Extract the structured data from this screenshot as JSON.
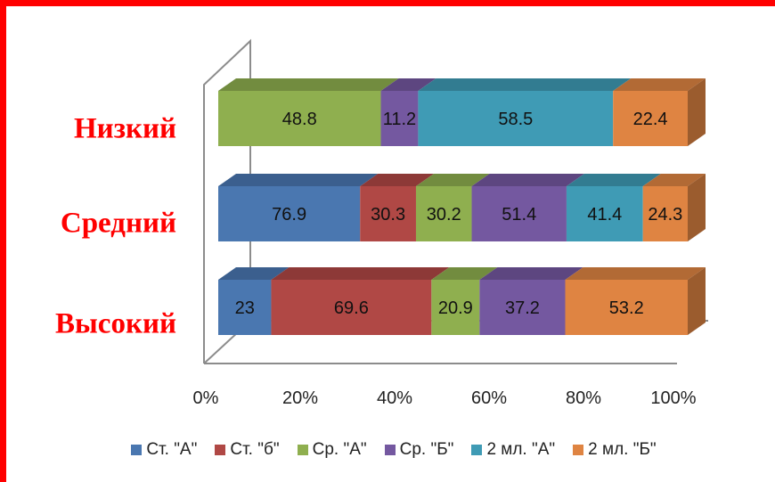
{
  "colors": {
    "border": "#ff0000",
    "axis": "#8c8c8c",
    "category_label": "#ff0000"
  },
  "chart_data": {
    "type": "bar",
    "orientation": "horizontal",
    "stacked": "percent",
    "three_d": true,
    "categories": [
      "Высокий",
      "Средний",
      "Низкий"
    ],
    "series": [
      {
        "name": "Ст. \"А\"",
        "color": "#4a77b0",
        "top": "#3b5f8e",
        "side": "#33527b",
        "values": [
          23,
          76.9,
          null
        ]
      },
      {
        "name": "Ст. \"б\"",
        "color": "#b04845",
        "top": "#8d3937",
        "side": "#7a3130",
        "values": [
          69.6,
          30.3,
          null
        ]
      },
      {
        "name": "Ср. \"А\"",
        "color": "#8faf4f",
        "top": "#728c3f",
        "side": "#647a37",
        "values": [
          20.9,
          30.2,
          48.8
        ]
      },
      {
        "name": "Ср. \"Б\"",
        "color": "#7458a0",
        "top": "#5d4680",
        "side": "#513d70",
        "values": [
          37.2,
          51.4,
          11.2
        ]
      },
      {
        "name": "2 мл. \"А\"",
        "color": "#3f9bb5",
        "top": "#327c91",
        "side": "#2c6c7e",
        "values": [
          null,
          41.4,
          58.5
        ]
      },
      {
        "name": "2 мл. \"Б\"",
        "color": "#df8442",
        "top": "#b26a35",
        "side": "#9b5c2e",
        "values": [
          53.2,
          24.3,
          22.4
        ]
      }
    ],
    "xlim": [
      0,
      100
    ],
    "x_ticks": [
      "0%",
      "20%",
      "40%",
      "60%",
      "80%",
      "100%"
    ],
    "legend_position": "bottom",
    "grid": false
  }
}
